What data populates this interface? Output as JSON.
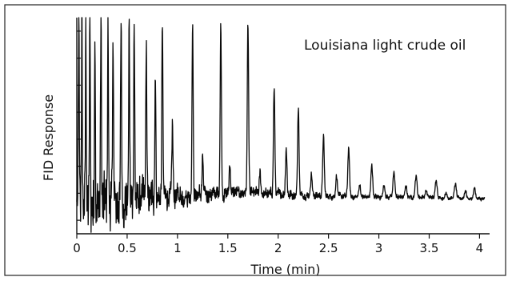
{
  "chart_data": {
    "type": "line",
    "title": "",
    "annotation": "Louisiana light crude oil",
    "xlabel": "Time (min)",
    "ylabel": "FID Response",
    "xlim": [
      0,
      4.1
    ],
    "ylim": [
      0,
      1
    ],
    "grid": false,
    "legend": "none",
    "x_ticks": [
      0,
      0.5,
      1,
      1.5,
      2,
      2.5,
      3,
      3.5,
      4
    ],
    "x_tick_labels": [
      "0",
      "0.5",
      "1",
      "1.5",
      "2",
      "2.5",
      "3",
      "3.5",
      "4"
    ],
    "y_tick_count": 8,
    "baseline": [
      [
        0,
        0.12
      ],
      [
        0.3,
        0.14
      ],
      [
        0.8,
        0.17
      ],
      [
        1.2,
        0.18
      ],
      [
        1.6,
        0.19
      ],
      [
        2.2,
        0.18
      ],
      [
        2.8,
        0.17
      ],
      [
        3.4,
        0.17
      ],
      [
        4.05,
        0.16
      ]
    ],
    "noise_envelope": [
      [
        0,
        0.5
      ],
      [
        0.3,
        0.4
      ],
      [
        0.6,
        0.28
      ],
      [
        0.9,
        0.18
      ],
      [
        1.2,
        0.12
      ],
      [
        1.6,
        0.09
      ],
      [
        2.0,
        0.07
      ],
      [
        2.5,
        0.045
      ],
      [
        3.0,
        0.035
      ],
      [
        3.5,
        0.03
      ],
      [
        4.05,
        0.025
      ]
    ],
    "peaks": [
      {
        "x": 0.02,
        "y": 1.0
      },
      {
        "x": 0.05,
        "y": 1.0
      },
      {
        "x": 0.09,
        "y": 1.0
      },
      {
        "x": 0.13,
        "y": 1.0
      },
      {
        "x": 0.18,
        "y": 1.0
      },
      {
        "x": 0.24,
        "y": 1.0
      },
      {
        "x": 0.31,
        "y": 1.0
      },
      {
        "x": 0.36,
        "y": 0.95
      },
      {
        "x": 0.44,
        "y": 1.0
      },
      {
        "x": 0.52,
        "y": 0.96
      },
      {
        "x": 0.57,
        "y": 1.0
      },
      {
        "x": 0.69,
        "y": 0.88
      },
      {
        "x": 0.78,
        "y": 0.75
      },
      {
        "x": 0.85,
        "y": 0.98
      },
      {
        "x": 0.95,
        "y": 0.5
      },
      {
        "x": 1.15,
        "y": 0.98
      },
      {
        "x": 1.25,
        "y": 0.35
      },
      {
        "x": 1.43,
        "y": 0.97
      },
      {
        "x": 1.52,
        "y": 0.33
      },
      {
        "x": 1.7,
        "y": 0.97
      },
      {
        "x": 1.82,
        "y": 0.28
      },
      {
        "x": 1.96,
        "y": 0.68
      },
      {
        "x": 2.08,
        "y": 0.4
      },
      {
        "x": 2.2,
        "y": 0.58
      },
      {
        "x": 2.33,
        "y": 0.28
      },
      {
        "x": 2.45,
        "y": 0.45
      },
      {
        "x": 2.58,
        "y": 0.27
      },
      {
        "x": 2.7,
        "y": 0.4
      },
      {
        "x": 2.81,
        "y": 0.23
      },
      {
        "x": 2.93,
        "y": 0.32
      },
      {
        "x": 3.05,
        "y": 0.23
      },
      {
        "x": 3.15,
        "y": 0.29
      },
      {
        "x": 3.27,
        "y": 0.22
      },
      {
        "x": 3.37,
        "y": 0.27
      },
      {
        "x": 3.47,
        "y": 0.2
      },
      {
        "x": 3.57,
        "y": 0.25
      },
      {
        "x": 3.67,
        "y": 0.19
      },
      {
        "x": 3.76,
        "y": 0.23
      },
      {
        "x": 3.86,
        "y": 0.2
      },
      {
        "x": 3.95,
        "y": 0.21
      }
    ]
  }
}
